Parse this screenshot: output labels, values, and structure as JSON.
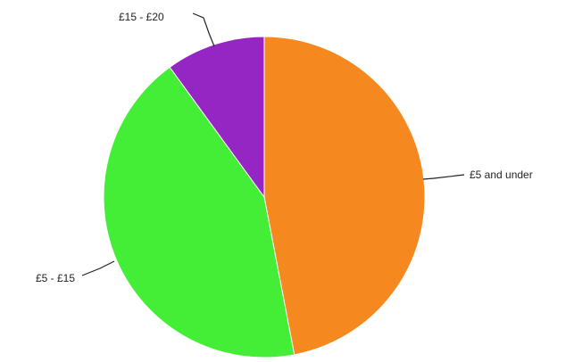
{
  "chart_data": {
    "type": "pie",
    "title": "",
    "start_angle_deg": 0,
    "direction": "clockwise",
    "slices": [
      {
        "label": "£5 and under",
        "value": 47,
        "color": "#F5891F"
      },
      {
        "label": "£5 - £15",
        "value": 43,
        "color": "#44EE36"
      },
      {
        "label": "£15 - £20",
        "value": 10,
        "color": "#9526C3"
      }
    ],
    "legend": "none",
    "labels_outside": true
  }
}
